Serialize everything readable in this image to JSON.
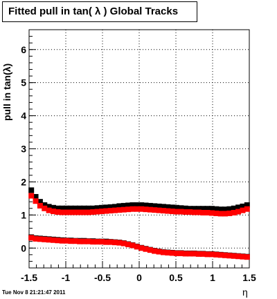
{
  "title": "Fitted pull in tan( λ )  Global Tracks",
  "timestamp": "Tue Nov  8 21:21:47 2011",
  "chart_data": {
    "type": "scatter",
    "xlabel": "η",
    "ylabel": "pull in tan(λ)",
    "xlim": [
      -1.5,
      1.5
    ],
    "ylim": [
      -0.6,
      6.6
    ],
    "xticks": [
      "-1.5",
      "-1",
      "-0.5",
      "0",
      "0.5",
      "1",
      "1.5"
    ],
    "yticks": [
      "0",
      "1",
      "2",
      "3",
      "4",
      "5",
      "6"
    ],
    "grid": true,
    "series": [
      {
        "color": "#000000",
        "marker": "square",
        "x": [
          -1.47,
          -1.41,
          -1.35,
          -1.29,
          -1.23,
          -1.17,
          -1.11,
          -1.05,
          -0.99,
          -0.93,
          -0.87,
          -0.81,
          -0.75,
          -0.69,
          -0.63,
          -0.57,
          -0.51,
          -0.45,
          -0.39,
          -0.33,
          -0.27,
          -0.21,
          -0.15,
          -0.09,
          -0.03,
          0.03,
          0.09,
          0.15,
          0.21,
          0.27,
          0.33,
          0.39,
          0.45,
          0.51,
          0.57,
          0.63,
          0.69,
          0.75,
          0.81,
          0.87,
          0.93,
          0.99,
          1.05,
          1.11,
          1.17,
          1.23,
          1.29,
          1.35,
          1.41,
          1.47
        ],
        "y": [
          1.75,
          1.55,
          1.4,
          1.3,
          1.25,
          1.22,
          1.2,
          1.2,
          1.2,
          1.2,
          1.2,
          1.2,
          1.2,
          1.2,
          1.2,
          1.21,
          1.22,
          1.23,
          1.24,
          1.25,
          1.27,
          1.28,
          1.29,
          1.3,
          1.3,
          1.3,
          1.29,
          1.28,
          1.27,
          1.26,
          1.25,
          1.24,
          1.23,
          1.22,
          1.21,
          1.2,
          1.19,
          1.19,
          1.19,
          1.19,
          1.19,
          1.19,
          1.18,
          1.17,
          1.17,
          1.18,
          1.2,
          1.23,
          1.26,
          1.3
        ]
      },
      {
        "color": "#ff0000",
        "marker": "square",
        "x": [
          -1.47,
          -1.41,
          -1.35,
          -1.29,
          -1.23,
          -1.17,
          -1.11,
          -1.05,
          -0.99,
          -0.93,
          -0.87,
          -0.81,
          -0.75,
          -0.69,
          -0.63,
          -0.57,
          -0.51,
          -0.45,
          -0.39,
          -0.33,
          -0.27,
          -0.21,
          -0.15,
          -0.09,
          -0.03,
          0.03,
          0.09,
          0.15,
          0.21,
          0.27,
          0.33,
          0.39,
          0.45,
          0.51,
          0.57,
          0.63,
          0.69,
          0.75,
          0.81,
          0.87,
          0.93,
          0.99,
          1.05,
          1.11,
          1.17,
          1.23,
          1.29,
          1.35,
          1.41,
          1.47
        ],
        "y": [
          1.58,
          1.42,
          1.28,
          1.2,
          1.14,
          1.11,
          1.09,
          1.08,
          1.08,
          1.08,
          1.08,
          1.08,
          1.08,
          1.08,
          1.09,
          1.1,
          1.11,
          1.12,
          1.13,
          1.14,
          1.15,
          1.16,
          1.17,
          1.18,
          1.18,
          1.18,
          1.17,
          1.16,
          1.15,
          1.14,
          1.13,
          1.12,
          1.11,
          1.1,
          1.1,
          1.09,
          1.09,
          1.08,
          1.08,
          1.07,
          1.07,
          1.06,
          1.05,
          1.04,
          1.04,
          1.05,
          1.07,
          1.1,
          1.14,
          1.18
        ]
      },
      {
        "color": "#000000",
        "marker": "square",
        "x": [
          -1.47,
          -1.41,
          -1.35,
          -1.29,
          -1.23,
          -1.17,
          -1.11,
          -1.05,
          -0.99,
          -0.93,
          -0.87,
          -0.81,
          -0.75,
          -0.69,
          -0.63,
          -0.57,
          -0.51,
          -0.45,
          -0.39,
          -0.33,
          -0.27,
          -0.21,
          -0.15,
          -0.09,
          -0.03,
          0.03,
          0.09,
          0.15,
          0.21,
          0.27,
          0.33,
          0.39,
          0.45,
          0.51,
          0.57,
          0.63,
          0.69,
          0.75,
          0.81,
          0.87,
          0.93,
          0.99,
          1.05,
          1.11,
          1.17,
          1.23,
          1.29,
          1.35,
          1.41,
          1.47
        ],
        "y": [
          0.33,
          0.3,
          0.29,
          0.28,
          0.27,
          0.26,
          0.25,
          0.24,
          0.23,
          0.23,
          0.22,
          0.22,
          0.22,
          0.21,
          0.21,
          0.2,
          0.2,
          0.2,
          0.19,
          0.18,
          0.17,
          0.15,
          0.12,
          0.09,
          0.05,
          0.01,
          -0.02,
          -0.05,
          -0.08,
          -0.1,
          -0.12,
          -0.13,
          -0.14,
          -0.15,
          -0.15,
          -0.16,
          -0.16,
          -0.16,
          -0.17,
          -0.17,
          -0.18,
          -0.18,
          -0.19,
          -0.2,
          -0.21,
          -0.22,
          -0.23,
          -0.24,
          -0.25,
          -0.26
        ]
      },
      {
        "color": "#ff0000",
        "marker": "square",
        "x": [
          -1.47,
          -1.41,
          -1.35,
          -1.29,
          -1.23,
          -1.17,
          -1.11,
          -1.05,
          -0.99,
          -0.93,
          -0.87,
          -0.81,
          -0.75,
          -0.69,
          -0.63,
          -0.57,
          -0.51,
          -0.45,
          -0.39,
          -0.33,
          -0.27,
          -0.21,
          -0.15,
          -0.09,
          -0.03,
          0.03,
          0.09,
          0.15,
          0.21,
          0.27,
          0.33,
          0.39,
          0.45,
          0.51,
          0.57,
          0.63,
          0.69,
          0.75,
          0.81,
          0.87,
          0.93,
          0.99,
          1.05,
          1.11,
          1.17,
          1.23,
          1.29,
          1.35,
          1.41,
          1.47
        ],
        "y": [
          0.31,
          0.28,
          0.27,
          0.26,
          0.25,
          0.24,
          0.23,
          0.22,
          0.22,
          0.21,
          0.21,
          0.2,
          0.2,
          0.2,
          0.19,
          0.19,
          0.19,
          0.18,
          0.18,
          0.17,
          0.16,
          0.14,
          0.11,
          0.08,
          0.04,
          0.0,
          -0.03,
          -0.06,
          -0.09,
          -0.11,
          -0.13,
          -0.14,
          -0.15,
          -0.16,
          -0.16,
          -0.17,
          -0.17,
          -0.17,
          -0.18,
          -0.18,
          -0.19,
          -0.19,
          -0.2,
          -0.21,
          -0.22,
          -0.23,
          -0.24,
          -0.25,
          -0.26,
          -0.27
        ]
      }
    ]
  }
}
